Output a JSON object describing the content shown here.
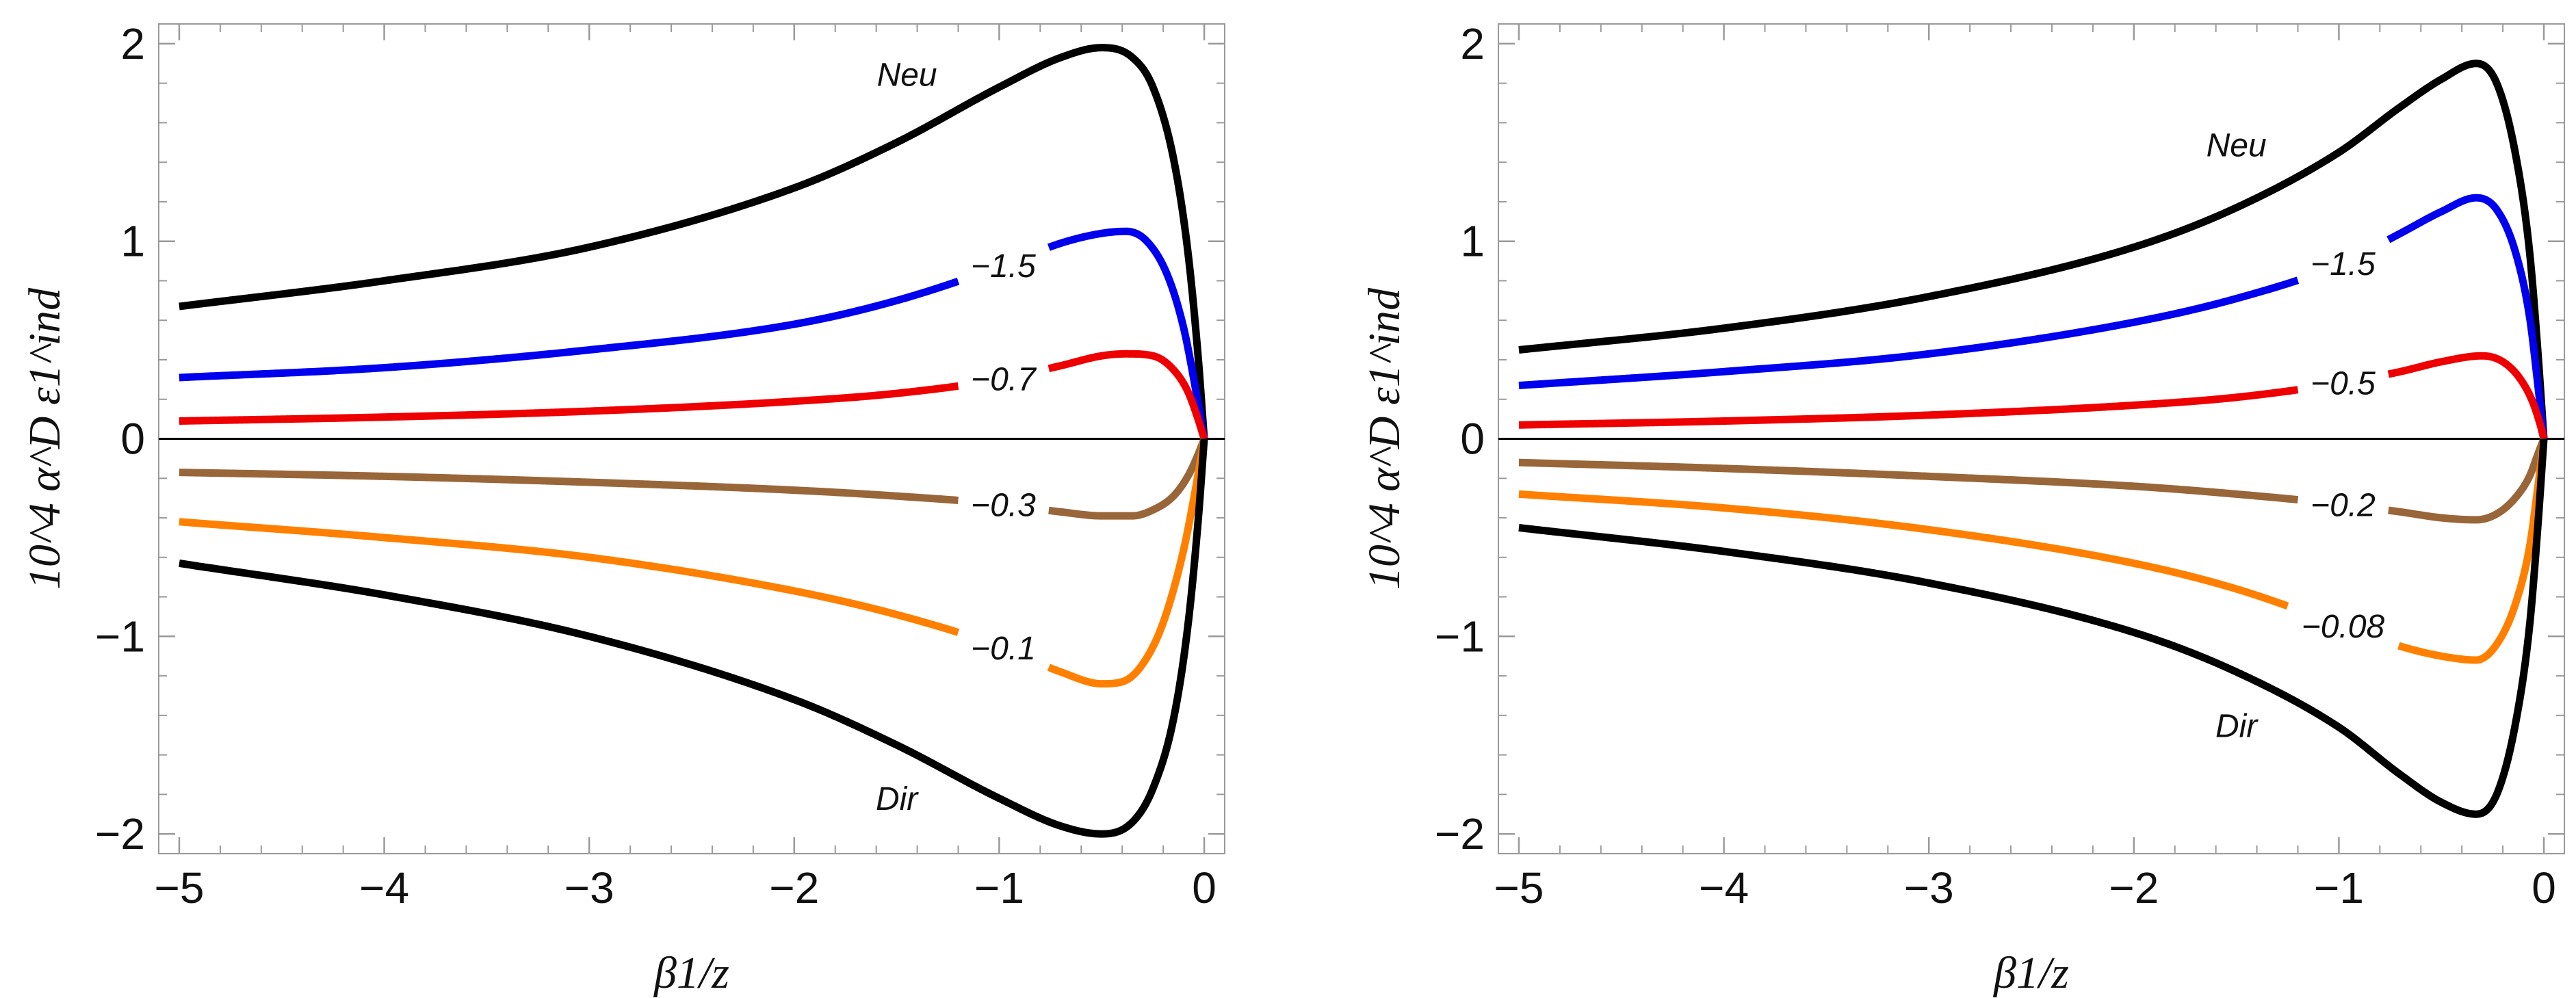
{
  "chart_data": [
    {
      "type": "line",
      "title": "",
      "xlabel": "β1/z",
      "ylabel": "10^4 α^D ε1^ind",
      "xlim": [
        -5.1,
        0.1
      ],
      "ylim": [
        -2.1,
        2.1
      ],
      "xticks": [
        -5,
        -4,
        -3,
        -2,
        -1,
        0
      ],
      "xtick_labels": [
        "−5",
        "−4",
        "−3",
        "−2",
        "−1",
        "0"
      ],
      "yticks": [
        -2,
        -1,
        0,
        1,
        2
      ],
      "ytick_labels": [
        "−2",
        "−1",
        "0",
        "1",
        "2"
      ],
      "grid": false,
      "series": [
        {
          "name": "Neu",
          "color": "#000000",
          "label_x": -1.45,
          "x": [
            -5,
            -4,
            -3,
            -2,
            -1.5,
            -1,
            -0.7,
            -0.5,
            -0.35,
            -0.25,
            -0.15,
            -0.08,
            -0.03,
            0
          ],
          "y": [
            0.67,
            0.8,
            0.97,
            1.27,
            1.5,
            1.78,
            1.93,
            1.98,
            1.93,
            1.78,
            1.42,
            0.95,
            0.42,
            0
          ]
        },
        {
          "name": "−1.5",
          "color": "#0000ee",
          "label_x": -0.98,
          "x": [
            -5,
            -4,
            -3,
            -2,
            -1.5,
            -1,
            -0.7,
            -0.5,
            -0.38,
            -0.28,
            -0.18,
            -0.1,
            -0.04,
            0
          ],
          "y": [
            0.31,
            0.36,
            0.45,
            0.58,
            0.7,
            0.87,
            0.99,
            1.04,
            1.05,
            1.0,
            0.83,
            0.56,
            0.24,
            0
          ]
        },
        {
          "name": "−0.7",
          "color": "#ee0000",
          "label_x": -0.98,
          "x": [
            -5,
            -4,
            -3,
            -2,
            -1.5,
            -1,
            -0.7,
            -0.5,
            -0.38,
            -0.25,
            -0.15,
            -0.08,
            -0.03,
            0
          ],
          "y": [
            0.09,
            0.11,
            0.14,
            0.19,
            0.23,
            0.3,
            0.37,
            0.42,
            0.43,
            0.42,
            0.35,
            0.24,
            0.1,
            0
          ]
        },
        {
          "name": "−0.3",
          "color": "#99663a",
          "label_x": -0.98,
          "x": [
            -5,
            -4,
            -3,
            -2,
            -1.5,
            -1,
            -0.7,
            -0.5,
            -0.35,
            -0.25,
            -0.15,
            -0.08,
            -0.03,
            0
          ],
          "y": [
            -0.17,
            -0.19,
            -0.22,
            -0.26,
            -0.29,
            -0.33,
            -0.37,
            -0.39,
            -0.39,
            -0.36,
            -0.29,
            -0.19,
            -0.08,
            0
          ]
        },
        {
          "name": "−0.1",
          "color": "#ff8000",
          "label_x": -0.98,
          "x": [
            -5,
            -4,
            -3,
            -2,
            -1.5,
            -1,
            -0.7,
            -0.5,
            -0.4,
            -0.3,
            -0.2,
            -0.1,
            -0.04,
            0
          ],
          "y": [
            -0.42,
            -0.5,
            -0.6,
            -0.77,
            -0.89,
            -1.05,
            -1.18,
            -1.24,
            -1.23,
            -1.14,
            -0.93,
            -0.56,
            -0.24,
            0
          ]
        },
        {
          "name": "Dir",
          "color": "#000000",
          "label_x": -1.5,
          "x": [
            -5,
            -4,
            -3,
            -2,
            -1.5,
            -1,
            -0.7,
            -0.5,
            -0.35,
            -0.25,
            -0.15,
            -0.08,
            -0.03,
            0
          ],
          "y": [
            -0.63,
            -0.79,
            -1.0,
            -1.32,
            -1.55,
            -1.82,
            -1.96,
            -2.0,
            -1.94,
            -1.77,
            -1.42,
            -0.95,
            -0.42,
            0
          ]
        }
      ]
    },
    {
      "type": "line",
      "title": "",
      "xlabel": "β1/z",
      "ylabel": "10^4 α^D ε1^ind",
      "xlim": [
        -5.1,
        0.1
      ],
      "ylim": [
        -2.1,
        2.1
      ],
      "xticks": [
        -5,
        -4,
        -3,
        -2,
        -1,
        0
      ],
      "xtick_labels": [
        "−5",
        "−4",
        "−3",
        "−2",
        "−1",
        "0"
      ],
      "yticks": [
        -2,
        -1,
        0,
        1,
        2
      ],
      "ytick_labels": [
        "−2",
        "−1",
        "0",
        "1",
        "2"
      ],
      "grid": false,
      "series": [
        {
          "name": "Neu",
          "color": "#000000",
          "label_x": -1.5,
          "x": [
            -5,
            -4,
            -3,
            -2,
            -1.5,
            -1,
            -0.7,
            -0.5,
            -0.33,
            -0.23,
            -0.14,
            -0.07,
            -0.03,
            0
          ],
          "y": [
            0.45,
            0.56,
            0.72,
            0.97,
            1.17,
            1.45,
            1.68,
            1.82,
            1.9,
            1.8,
            1.45,
            0.95,
            0.45,
            0
          ]
        },
        {
          "name": "−1.5",
          "color": "#0000ee",
          "label_x": -0.98,
          "x": [
            -5,
            -4,
            -3,
            -2,
            -1.5,
            -1,
            -0.7,
            -0.5,
            -0.33,
            -0.23,
            -0.14,
            -0.07,
            -0.03,
            0
          ],
          "y": [
            0.27,
            0.34,
            0.43,
            0.59,
            0.71,
            0.88,
            1.04,
            1.15,
            1.22,
            1.16,
            0.95,
            0.62,
            0.28,
            0
          ]
        },
        {
          "name": "−0.5",
          "color": "#ee0000",
          "label_x": -0.98,
          "x": [
            -5,
            -4,
            -3,
            -2,
            -1.5,
            -1,
            -0.7,
            -0.5,
            -0.3,
            -0.2,
            -0.12,
            -0.06,
            -0.02,
            0
          ],
          "y": [
            0.07,
            0.09,
            0.12,
            0.17,
            0.21,
            0.28,
            0.34,
            0.39,
            0.42,
            0.39,
            0.31,
            0.2,
            0.08,
            0
          ]
        },
        {
          "name": "−0.2",
          "color": "#99663a",
          "label_x": -0.98,
          "x": [
            -5,
            -4,
            -3,
            -2,
            -1.5,
            -1,
            -0.7,
            -0.5,
            -0.33,
            -0.23,
            -0.14,
            -0.07,
            -0.03,
            0
          ],
          "y": [
            -0.12,
            -0.15,
            -0.19,
            -0.24,
            -0.28,
            -0.33,
            -0.37,
            -0.4,
            -0.41,
            -0.38,
            -0.3,
            -0.19,
            -0.08,
            0
          ]
        },
        {
          "name": "−0.08",
          "color": "#ff8000",
          "label_x": -0.98,
          "x": [
            -5,
            -4,
            -3,
            -2,
            -1.5,
            -1,
            -0.7,
            -0.5,
            -0.33,
            -0.23,
            -0.14,
            -0.07,
            -0.03,
            0
          ],
          "y": [
            -0.28,
            -0.35,
            -0.46,
            -0.63,
            -0.76,
            -0.94,
            -1.05,
            -1.1,
            -1.12,
            -1.04,
            -0.84,
            -0.55,
            -0.25,
            0
          ]
        },
        {
          "name": "Dir",
          "color": "#000000",
          "label_x": -1.5,
          "x": [
            -5,
            -4,
            -3,
            -2,
            -1.5,
            -1,
            -0.7,
            -0.5,
            -0.33,
            -0.23,
            -0.14,
            -0.07,
            -0.03,
            0
          ],
          "y": [
            -0.45,
            -0.57,
            -0.73,
            -0.98,
            -1.18,
            -1.46,
            -1.7,
            -1.84,
            -1.9,
            -1.8,
            -1.45,
            -0.95,
            -0.45,
            0
          ]
        }
      ]
    }
  ]
}
